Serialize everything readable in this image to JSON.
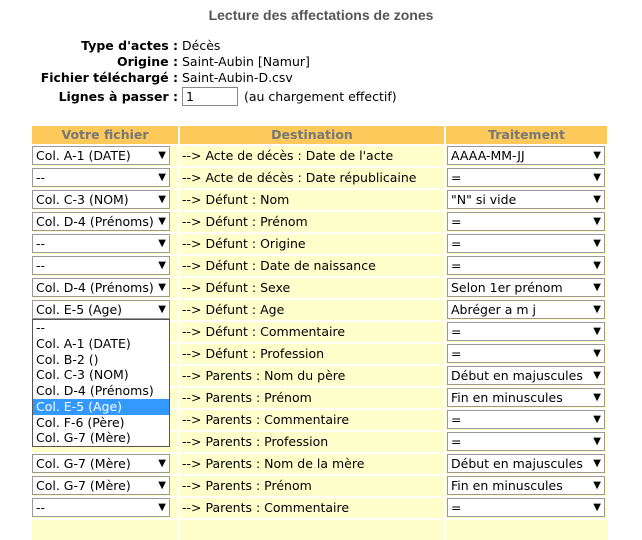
{
  "header": {
    "title": "Lecture des affectations de zones"
  },
  "info": [
    {
      "label": "Type d'actes :",
      "value": "Décès"
    },
    {
      "label": "Origine :",
      "value": "Saint-Aubin [Namur]"
    },
    {
      "label": "Fichier téléchargé :",
      "value": "Saint-Aubin-D.csv"
    }
  ],
  "skip": {
    "label": "Lignes à passer :",
    "value": "1",
    "note": "(au chargement effectif)"
  },
  "table": {
    "columns": [
      "Votre fichier",
      "Destination",
      "Traitement"
    ],
    "rows": [
      {
        "file": "Col. A-1 (DATE)",
        "destination": "--> Acte de décès : Date de l'acte",
        "treatment": "AAAA-MM-JJ"
      },
      {
        "file": "--",
        "destination": "--> Acte de décès : Date républicaine",
        "treatment": "="
      },
      {
        "file": "Col. C-3 (NOM)",
        "destination": "--> Défunt : Nom",
        "treatment": "\"N\" si vide"
      },
      {
        "file": "Col. D-4 (Prénoms)",
        "destination": "--> Défunt : Prénom",
        "treatment": "="
      },
      {
        "file": "--",
        "destination": "--> Défunt : Origine",
        "treatment": "="
      },
      {
        "file": "--",
        "destination": "--> Défunt : Date de naissance",
        "treatment": "="
      },
      {
        "file": "Col. D-4 (Prénoms)",
        "destination": "--> Défunt : Sexe",
        "treatment": "Selon 1er prénom"
      },
      {
        "file": "Col. E-5 (Age)",
        "destination": "--> Défunt : Age",
        "treatment": "Abréger a m j",
        "open": true
      },
      {
        "destination": "--> Défunt : Commentaire",
        "treatment": "="
      },
      {
        "destination": "--> Défunt : Profession",
        "treatment": "="
      },
      {
        "destination": "--> Parents : Nom du père",
        "treatment": "Début en majuscules"
      },
      {
        "destination": "--> Parents : Prénom",
        "treatment": "Fin en minuscules"
      },
      {
        "destination": "--> Parents : Commentaire",
        "treatment": "="
      },
      {
        "destination": "--> Parents : Profession",
        "treatment": "="
      },
      {
        "file": "Col. G-7 (Mère)",
        "destination": "--> Parents : Nom de la mère",
        "treatment": "Début en majuscules"
      },
      {
        "file": "Col. G-7 (Mère)",
        "destination": "--> Parents : Prénom",
        "treatment": "Fin en minuscules"
      },
      {
        "file": "--",
        "destination": "--> Parents : Commentaire",
        "treatment": "="
      }
    ]
  },
  "dropdown": {
    "options": [
      "--",
      "Col. A-1 (DATE)",
      "Col. B-2 ()",
      "Col. C-3 (NOM)",
      "Col. D-4 (Prénoms)",
      "Col. E-5 (Age)",
      "Col. F-6 (Père)",
      "Col. G-7 (Mère)"
    ]
  }
}
